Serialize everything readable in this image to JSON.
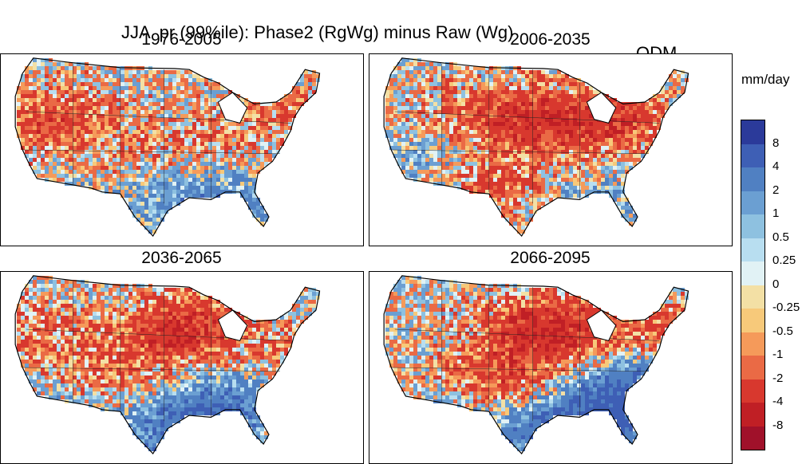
{
  "title": {
    "main": "JJA  pr (99%ile): Phase2 (RgWg) minus Raw (Wg)",
    "method": "QDM"
  },
  "panels": [
    {
      "label": "1976-2005",
      "seed": 11,
      "regions": [
        [
          0.15,
          0.35,
          0.7
        ],
        [
          0.55,
          0.45,
          0.3
        ],
        [
          0.5,
          0.75,
          -0.6
        ],
        [
          0.7,
          0.8,
          -0.5
        ],
        [
          0.15,
          0.8,
          -0.4
        ],
        [
          0.85,
          0.3,
          0.5
        ],
        [
          0.35,
          0.6,
          0.2
        ]
      ]
    },
    {
      "label": "2006-2035",
      "seed": 23,
      "regions": [
        [
          0.45,
          0.35,
          0.9
        ],
        [
          0.7,
          0.35,
          0.8
        ],
        [
          0.35,
          0.7,
          0.6
        ],
        [
          0.6,
          0.8,
          -0.5
        ],
        [
          0.15,
          0.55,
          -0.4
        ],
        [
          0.9,
          0.45,
          -0.3
        ],
        [
          0.25,
          0.35,
          0.3
        ]
      ]
    },
    {
      "label": "2036-2065",
      "seed": 37,
      "regions": [
        [
          0.5,
          0.3,
          1.0
        ],
        [
          0.3,
          0.55,
          0.5
        ],
        [
          0.6,
          0.7,
          -0.9
        ],
        [
          0.5,
          0.85,
          -0.8
        ],
        [
          0.15,
          0.8,
          -0.6
        ],
        [
          0.85,
          0.45,
          0.4
        ],
        [
          0.1,
          0.3,
          0.4
        ]
      ]
    },
    {
      "label": "2066-2095",
      "seed": 51,
      "regions": [
        [
          0.5,
          0.3,
          1.1
        ],
        [
          0.35,
          0.55,
          0.7
        ],
        [
          0.55,
          0.85,
          -1.3
        ],
        [
          0.7,
          0.7,
          -1.0
        ],
        [
          0.8,
          0.6,
          -0.8
        ],
        [
          0.2,
          0.8,
          -0.5
        ],
        [
          0.85,
          0.3,
          0.6
        ]
      ]
    }
  ],
  "colorbar": {
    "unit": "mm/day",
    "labels": [
      "8",
      "4",
      "2",
      "1",
      "0.5",
      "0.25",
      "0",
      "-0.25",
      "-0.5",
      "-1",
      "-2",
      "-4",
      "-8"
    ],
    "colors": [
      "#2b3a9a",
      "#3e5fb5",
      "#5080c2",
      "#6b9fd2",
      "#8ec1e0",
      "#b8def0",
      "#e1f2f5",
      "#f3e0a5",
      "#f7c97a",
      "#f59a5a",
      "#ea6a45",
      "#d8382e",
      "#c01f25",
      "#a0112a"
    ]
  }
}
